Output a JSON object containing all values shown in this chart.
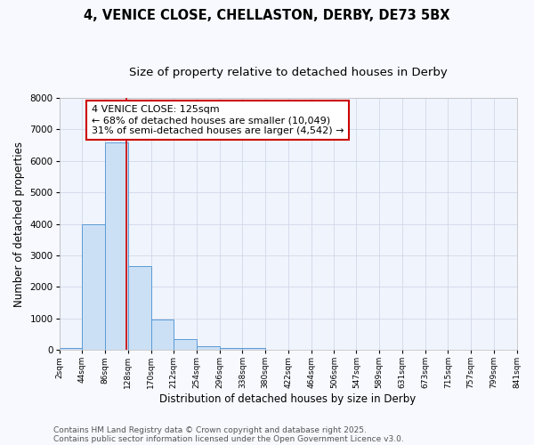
{
  "title1": "4, VENICE CLOSE, CHELLASTON, DERBY, DE73 5BX",
  "title2": "Size of property relative to detached houses in Derby",
  "xlabel": "Distribution of detached houses by size in Derby",
  "ylabel": "Number of detached properties",
  "bin_edges": [
    2,
    44,
    86,
    128,
    170,
    212,
    254,
    296,
    338,
    380,
    422,
    464,
    506,
    547,
    589,
    631,
    673,
    715,
    757,
    799,
    841
  ],
  "bar_heights": [
    60,
    4000,
    6600,
    2650,
    975,
    340,
    130,
    70,
    50,
    0,
    0,
    0,
    0,
    0,
    0,
    0,
    0,
    0,
    0,
    0
  ],
  "bar_color": "#cce0f5",
  "bar_edge_color": "#5b9bd5",
  "red_line_x": 125,
  "annotation_title": "4 VENICE CLOSE: 125sqm",
  "annotation_line1": "← 68% of detached houses are smaller (10,049)",
  "annotation_line2": "31% of semi-detached houses are larger (4,542) →",
  "annotation_box_facecolor": "#ffffff",
  "annotation_box_edgecolor": "#cc0000",
  "red_line_color": "#cc0000",
  "ylim": [
    0,
    8000
  ],
  "yticks": [
    0,
    1000,
    2000,
    3000,
    4000,
    5000,
    6000,
    7000,
    8000
  ],
  "footnote1": "Contains HM Land Registry data © Crown copyright and database right 2025.",
  "footnote2": "Contains public sector information licensed under the Open Government Licence v3.0.",
  "fig_facecolor": "#f8f9fe",
  "axes_facecolor": "#f0f4fc",
  "grid_color": "#d0d8e8",
  "title_fontsize": 10.5,
  "subtitle_fontsize": 9.5,
  "tick_label_fontsize": 6.5,
  "axis_label_fontsize": 8.5,
  "annot_fontsize": 8,
  "footnote_fontsize": 6.5
}
